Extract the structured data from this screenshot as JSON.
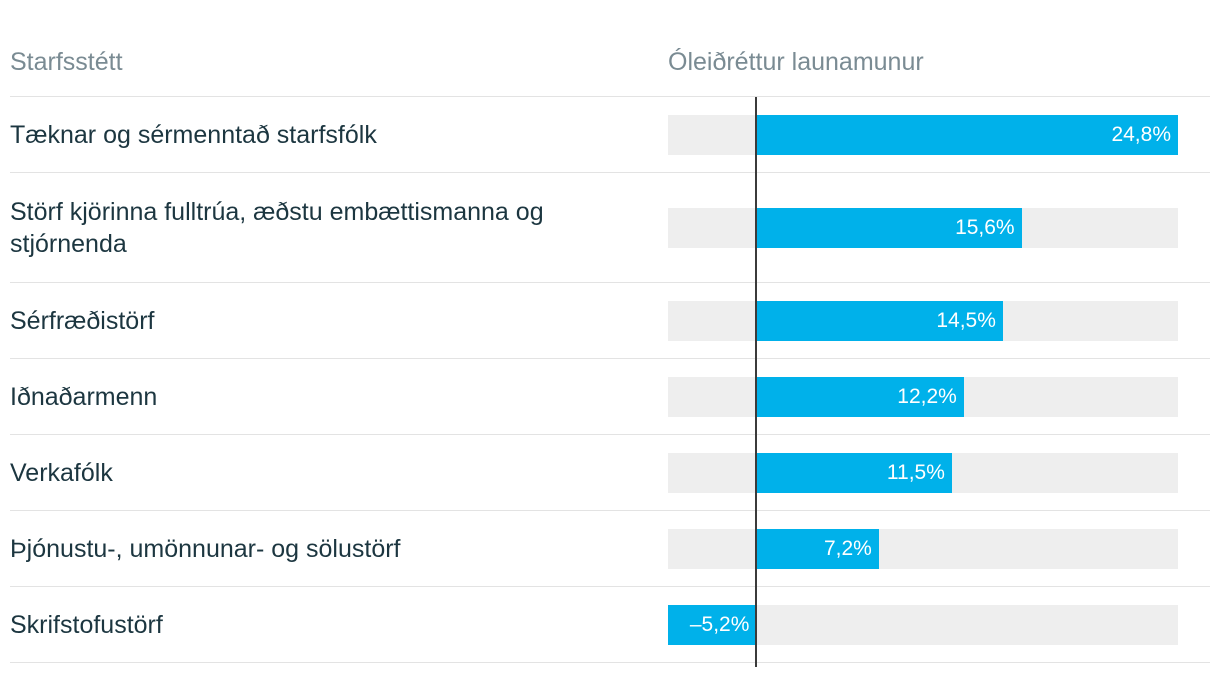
{
  "headers": {
    "category": "Starfsstétt",
    "value": "Óleiðréttur launamunur"
  },
  "chart_data": {
    "type": "bar",
    "orientation": "horizontal",
    "categories": [
      "Tæknar og sérmenntað starfsfólk",
      "Störf kjörinna fulltrúa, æðstu embættismanna og stjórnenda",
      "Sérfræðistörf",
      "Iðnaðarmenn",
      "Verkafólk",
      "Þjónustu-, umönnunar- og sölustörf",
      "Skrifstofustörf"
    ],
    "values": [
      24.8,
      15.6,
      14.5,
      12.2,
      11.5,
      7.2,
      -5.2
    ],
    "value_labels": [
      "24,8%",
      "15,6%",
      "14,5%",
      "12,2%",
      "11,5%",
      "7,2%",
      "–5,2%"
    ],
    "xlim": [
      -5.2,
      24.8
    ],
    "bar_color": "#00b1ea",
    "track_color": "#eeeeee",
    "grid": false
  }
}
